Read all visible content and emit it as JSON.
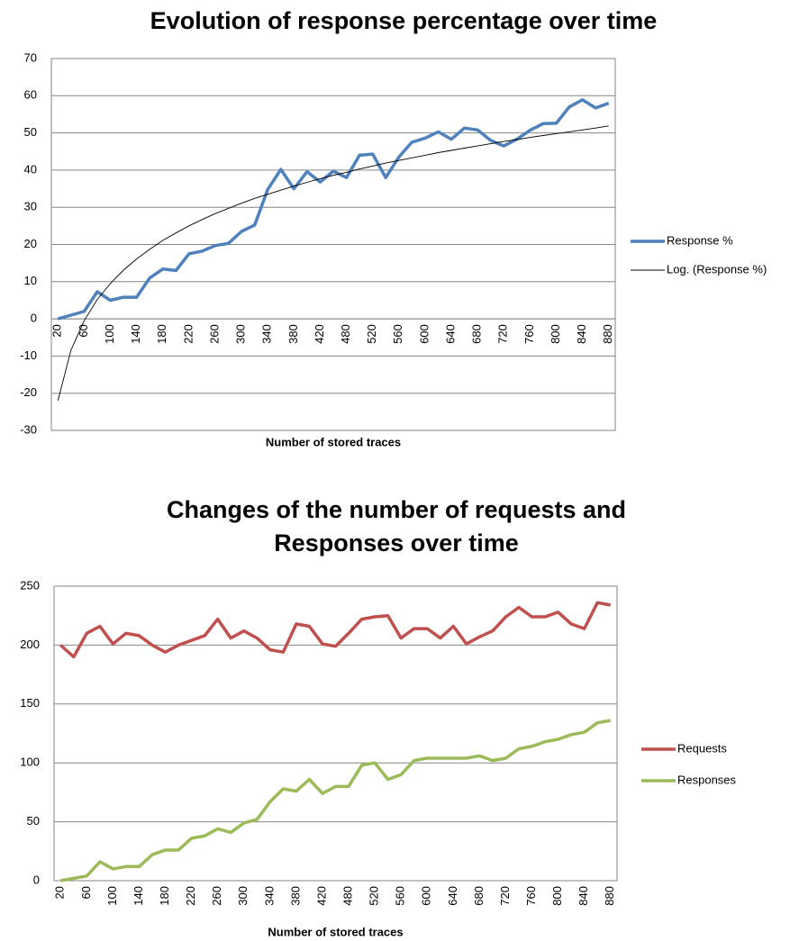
{
  "chart_data": [
    {
      "type": "line",
      "title": "Evolution of response percentage over time",
      "x_label": "Number of stored traces",
      "categories": [
        "20",
        null,
        "60",
        null,
        "100",
        null,
        "140",
        null,
        "180",
        null,
        "220",
        null,
        "260",
        null,
        "300",
        null,
        "340",
        null,
        "380",
        null,
        "420",
        null,
        "480",
        null,
        "520",
        null,
        "560",
        null,
        "600",
        null,
        "640",
        null,
        "680",
        null,
        "720",
        null,
        "760",
        null,
        "800",
        null,
        "840",
        null,
        "880"
      ],
      "series": [
        {
          "name": "Response %",
          "color": "#4f81bd",
          "values": [
            0,
            1,
            2,
            7.3,
            5,
            5.8,
            5.8,
            11,
            13.4,
            13,
            17.5,
            18.2,
            19.7,
            20.3,
            23.5,
            25.2,
            34.8,
            40.2,
            35,
            39.6,
            36.8,
            39.7,
            38,
            44,
            44.3,
            38,
            43.5,
            47.5,
            48.6,
            50.3,
            48.3,
            51.3,
            50.8,
            48,
            46.5,
            48.3,
            50.7,
            52.5,
            52.6,
            57,
            58.9,
            56.7,
            58
          ]
        },
        {
          "name": "Log. (Response %)",
          "color": "#000000",
          "trendline": true,
          "values": [
            -22,
            -8.4,
            -0.5,
            5.2,
            9.5,
            13.1,
            16.1,
            18.7,
            21.1,
            23.1,
            25.0,
            26.7,
            28.3,
            29.7,
            31.1,
            32.4,
            33.5,
            34.6,
            35.7,
            36.7,
            37.7,
            38.6,
            39.4,
            40.3,
            41.1,
            41.9,
            42.6,
            43.3,
            44.0,
            44.7,
            45.3,
            45.9,
            46.5,
            47.1,
            47.7,
            48.2,
            48.8,
            49.3,
            49.8,
            50.3,
            50.8,
            51.3,
            51.9
          ]
        }
      ],
      "ylim": [
        -30,
        70
      ],
      "yticks": [
        -30,
        -20,
        -10,
        0,
        10,
        20,
        30,
        40,
        50,
        60,
        70
      ],
      "grid": true,
      "legend": "right"
    },
    {
      "type": "line",
      "title": [
        "Changes of the number of requests and",
        "Responses over time"
      ],
      "x_label": "Number of stored traces",
      "categories": [
        "20",
        null,
        "60",
        null,
        "100",
        null,
        "140",
        null,
        "180",
        null,
        "220",
        null,
        "260",
        null,
        "300",
        null,
        "340",
        null,
        "380",
        null,
        "420",
        null,
        "480",
        null,
        "520",
        null,
        "560",
        null,
        "600",
        null,
        "640",
        null,
        "680",
        null,
        "720",
        null,
        "760",
        null,
        "800",
        null,
        "840",
        null,
        "880"
      ],
      "series": [
        {
          "name": "Requests",
          "color": "#c0504d",
          "values": [
            200,
            190,
            210,
            216,
            201,
            210,
            208,
            200,
            194,
            200,
            204,
            208,
            222,
            206,
            212,
            206,
            196,
            194,
            218,
            216,
            201,
            199,
            210,
            222,
            224,
            225,
            206,
            214,
            214,
            206,
            216,
            201,
            207,
            212,
            224,
            232,
            224,
            224,
            228,
            218,
            214,
            236,
            234
          ]
        },
        {
          "name": "Responses",
          "color": "#9bbb59",
          "values": [
            0,
            2,
            4,
            16,
            10,
            12,
            12,
            22,
            26,
            26,
            36,
            38,
            44,
            41,
            49,
            52,
            67,
            78,
            76,
            86,
            74,
            80,
            80,
            98,
            100,
            86,
            90,
            102,
            104,
            104,
            104,
            104,
            106,
            102,
            104,
            112,
            114,
            118,
            120,
            124,
            126,
            134,
            136
          ]
        }
      ],
      "ylim": [
        0,
        250
      ],
      "yticks": [
        0,
        50,
        100,
        150,
        200,
        250
      ],
      "grid": true,
      "legend": "right"
    }
  ]
}
